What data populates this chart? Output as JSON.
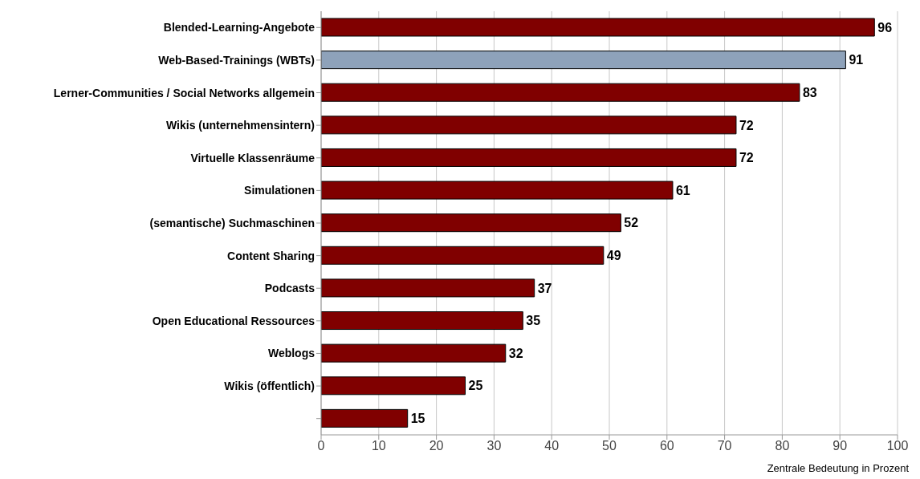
{
  "chart_data": {
    "type": "bar",
    "orientation": "horizontal",
    "categories": [
      "Blended-Learning-Angebote",
      "Web-Based-Trainings (WBTs)",
      "Lerner-Communities / Social Networks allgemein",
      "Wikis (unternehmensintern)",
      "Virtuelle Klassenräume",
      "Simulationen",
      "(semantische) Suchmaschinen",
      "Content Sharing",
      "Podcasts",
      "Open Educational Ressources",
      "Weblogs",
      "Wikis (öffentlich)",
      null
    ],
    "values": [
      96,
      91,
      83,
      72,
      72,
      61,
      52,
      49,
      37,
      35,
      32,
      25,
      15
    ],
    "colors": [
      "#800000",
      "#8ea2ba",
      "#800000",
      "#800000",
      "#800000",
      "#800000",
      "#800000",
      "#800000",
      "#800000",
      "#800000",
      "#800000",
      "#800000",
      "#800000"
    ],
    "xlim": [
      0,
      100
    ],
    "xticks": [
      0,
      10,
      20,
      30,
      40,
      50,
      60,
      70,
      80,
      90,
      100
    ],
    "xlabel": "Zentrale Bedeutung in Prozent",
    "grid": "x",
    "data_labels": true
  }
}
